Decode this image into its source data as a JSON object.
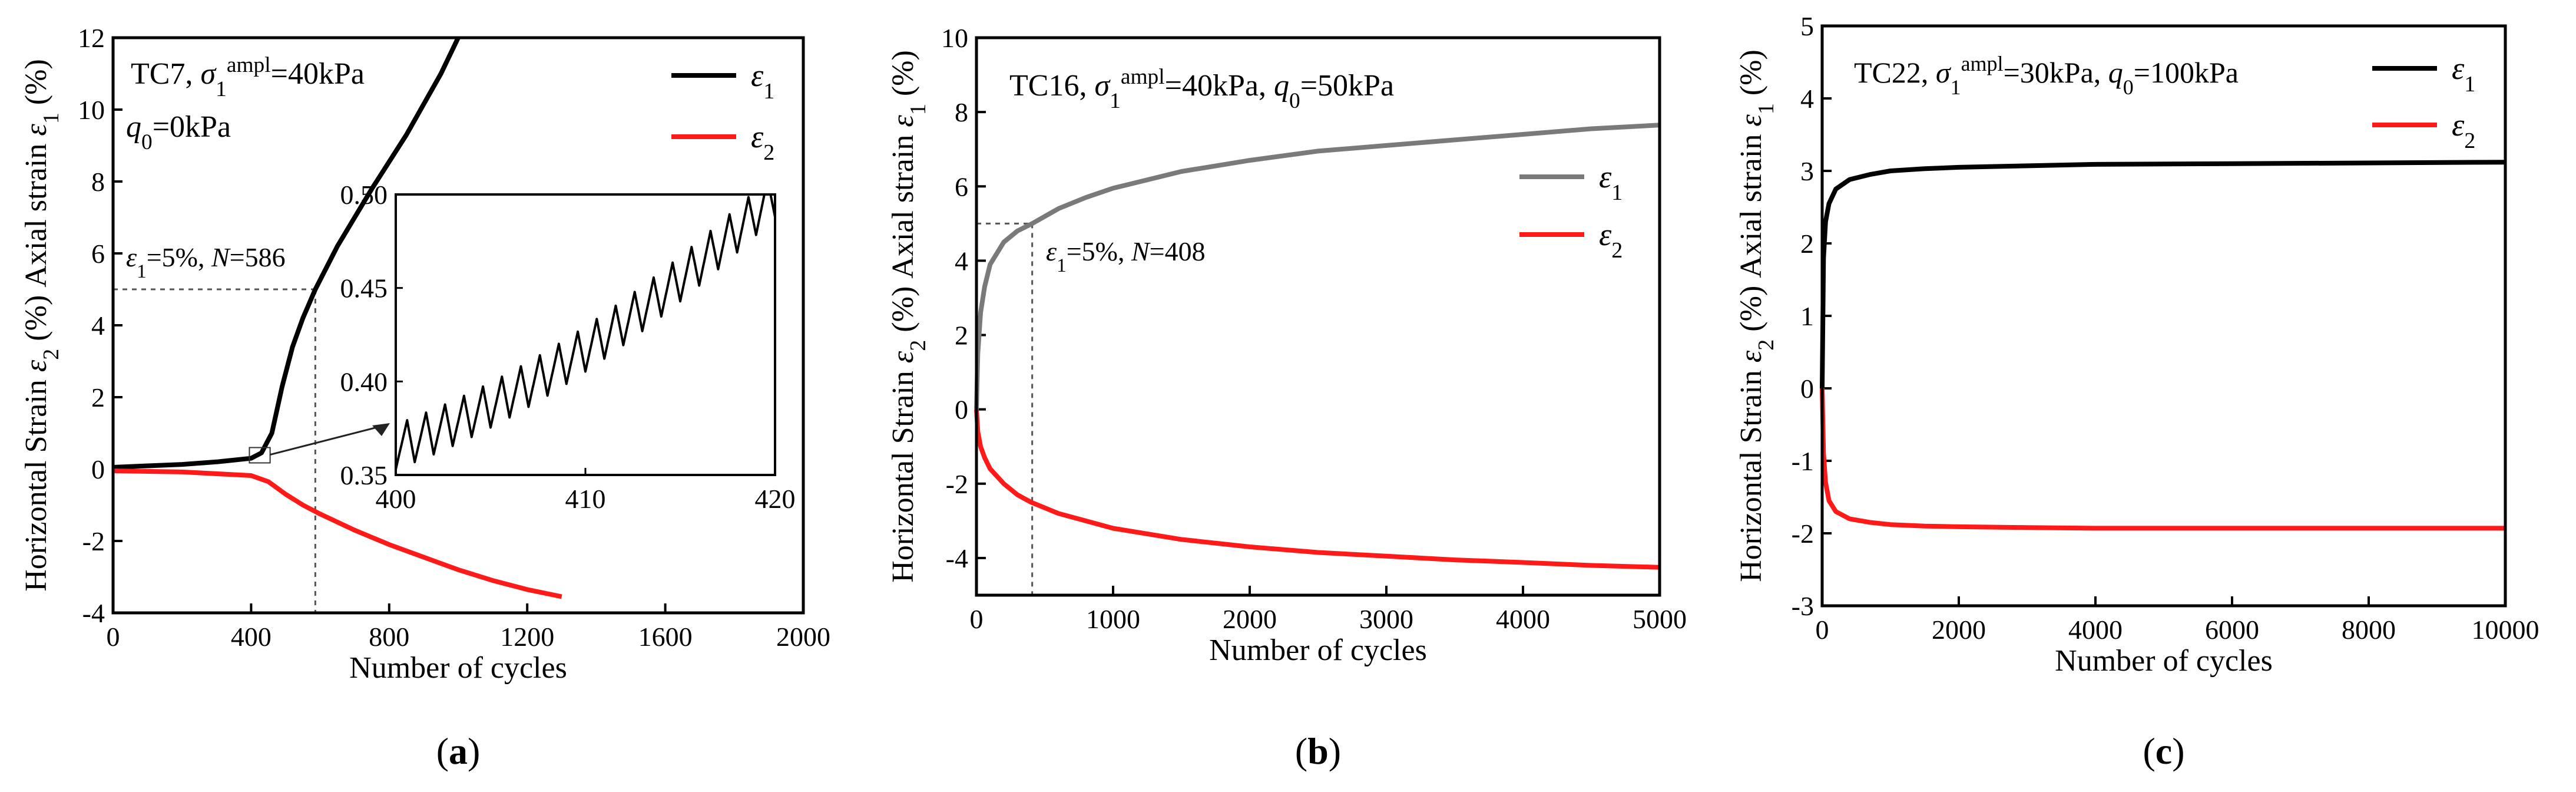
{
  "colors": {
    "black": "#000000",
    "red": "#ff1a1a",
    "gray": "#7a7a7a",
    "guide": "#555555"
  },
  "chart_data": [
    {
      "type": "line",
      "panel_label": "a",
      "title": "",
      "xlabel": "Number of cycles",
      "ylabel": "Horizontal Strain ε2 (%)  Axial strain ε1 (%)",
      "xlim": [
        0,
        2000
      ],
      "ylim": [
        -4,
        12
      ],
      "xticks": [
        0,
        400,
        800,
        1200,
        1600,
        2000
      ],
      "yticks": [
        -4,
        -2,
        0,
        2,
        4,
        6,
        8,
        10,
        12
      ],
      "annotation_lines": [
        "TC7, σ1ampl=40kPa",
        "q0=0kPa"
      ],
      "marker_note": "ε1=5%, N=586",
      "marker": {
        "x": 586,
        "y": 5
      },
      "legend": [
        "ε1",
        "ε2"
      ],
      "series": [
        {
          "name": "ε1",
          "color": "#000000",
          "x": [
            0,
            100,
            200,
            300,
            400,
            430,
            460,
            490,
            520,
            550,
            586,
            650,
            750,
            850,
            950,
            1000
          ],
          "values": [
            0.05,
            0.09,
            0.13,
            0.2,
            0.3,
            0.45,
            1.0,
            2.3,
            3.4,
            4.2,
            5.0,
            6.2,
            7.8,
            9.3,
            11.0,
            12.0
          ]
        },
        {
          "name": "ε2",
          "color": "#ff1a1a",
          "x": [
            0,
            200,
            400,
            450,
            500,
            550,
            600,
            700,
            800,
            900,
            1000,
            1100,
            1200,
            1300
          ],
          "values": [
            -0.05,
            -0.08,
            -0.18,
            -0.35,
            -0.7,
            -1.0,
            -1.25,
            -1.7,
            -2.1,
            -2.45,
            -2.8,
            -3.1,
            -3.35,
            -3.55
          ]
        }
      ],
      "inset": {
        "xlim": [
          400,
          420
        ],
        "ylim": [
          0.35,
          0.5
        ],
        "xticks": [
          400,
          410,
          420
        ],
        "yticks": [
          0.35,
          0.4,
          0.45,
          0.5
        ],
        "x_range": [
          400,
          420
        ],
        "trend": [
          0.365,
          0.5
        ],
        "oscillation_amplitude": 0.012,
        "cycles": 20
      }
    },
    {
      "type": "line",
      "panel_label": "b",
      "title": "",
      "xlabel": "Number of cycles",
      "ylabel": "Horizontal Strain ε2 (%)  Axial strain ε1 (%)",
      "xlim": [
        0,
        5000
      ],
      "ylim": [
        -5,
        10
      ],
      "xticks": [
        0,
        1000,
        2000,
        3000,
        4000,
        5000
      ],
      "yticks": [
        -4,
        -2,
        0,
        2,
        4,
        6,
        8,
        10
      ],
      "annotation_lines": [
        "TC16, σ1ampl=40kPa, q0=50kPa"
      ],
      "marker_note": "ε1=5%, N=408",
      "marker": {
        "x": 408,
        "y": 5
      },
      "legend": [
        "ε1",
        "ε2"
      ],
      "series": [
        {
          "name": "ε1",
          "color": "#7a7a7a",
          "x": [
            0,
            10,
            30,
            60,
            100,
            200,
            300,
            408,
            600,
            800,
            1000,
            1500,
            2000,
            2500,
            3000,
            3500,
            4000,
            4500,
            5000
          ],
          "values": [
            0,
            1.5,
            2.6,
            3.3,
            3.9,
            4.5,
            4.8,
            5.0,
            5.4,
            5.7,
            5.95,
            6.4,
            6.7,
            6.95,
            7.1,
            7.25,
            7.4,
            7.55,
            7.65
          ]
        },
        {
          "name": "ε2",
          "color": "#ff1a1a",
          "x": [
            0,
            10,
            30,
            60,
            100,
            200,
            300,
            400,
            600,
            800,
            1000,
            1500,
            2000,
            2500,
            3000,
            3500,
            4000,
            4500,
            5000
          ],
          "values": [
            0,
            -0.6,
            -1.0,
            -1.3,
            -1.6,
            -2.0,
            -2.3,
            -2.5,
            -2.8,
            -3.0,
            -3.2,
            -3.5,
            -3.7,
            -3.85,
            -3.95,
            -4.05,
            -4.12,
            -4.2,
            -4.25
          ]
        }
      ]
    },
    {
      "type": "line",
      "panel_label": "c",
      "title": "",
      "xlabel": "Number of cycles",
      "ylabel": "Horizontal Strain ε2 (%) Axial strain ε1 (%)",
      "xlim": [
        0,
        10000
      ],
      "ylim": [
        -3,
        5
      ],
      "xticks": [
        0,
        2000,
        4000,
        6000,
        8000,
        10000
      ],
      "yticks": [
        -3,
        -2,
        -1,
        0,
        1,
        2,
        3,
        4,
        5
      ],
      "annotation_lines": [
        "TC22, σ1ampl=30kPa, q0=100kPa"
      ],
      "legend": [
        "ε1",
        "ε2"
      ],
      "series": [
        {
          "name": "ε1",
          "color": "#000000",
          "x": [
            0,
            20,
            50,
            100,
            200,
            400,
            700,
            1000,
            1500,
            2000,
            3000,
            4000,
            6000,
            8000,
            10000
          ],
          "values": [
            0,
            1.8,
            2.3,
            2.55,
            2.75,
            2.88,
            2.95,
            3.0,
            3.03,
            3.05,
            3.07,
            3.09,
            3.1,
            3.11,
            3.12
          ]
        },
        {
          "name": "ε2",
          "color": "#ff1a1a",
          "x": [
            0,
            20,
            50,
            100,
            200,
            400,
            700,
            1000,
            1500,
            2000,
            3000,
            4000,
            6000,
            8000,
            10000
          ],
          "values": [
            0,
            -0.9,
            -1.3,
            -1.55,
            -1.7,
            -1.8,
            -1.85,
            -1.88,
            -1.9,
            -1.91,
            -1.92,
            -1.93,
            -1.93,
            -1.93,
            -1.93
          ]
        }
      ]
    }
  ]
}
